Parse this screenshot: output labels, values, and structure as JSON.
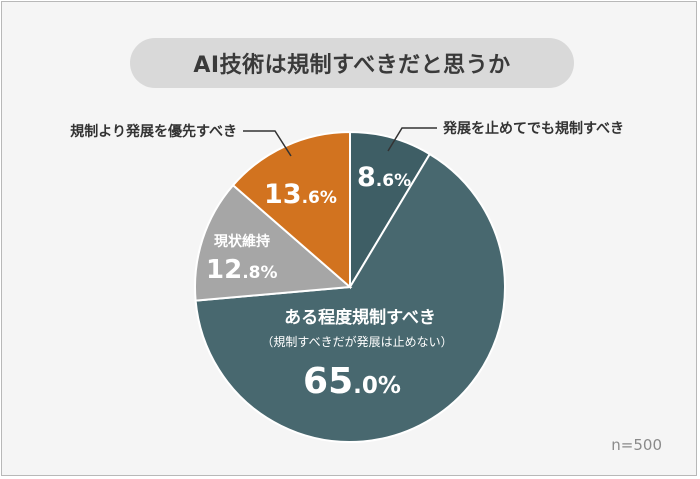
{
  "chart_data": {
    "type": "pie",
    "title": "AI技術は規制すべきだと思うか",
    "categories": [
      "発展を止めてでも規制すべき",
      "ある程度規制すべき",
      "現状維持",
      "規制より発展を優先すべき"
    ],
    "values": [
      8.6,
      65.0,
      12.8,
      13.6
    ],
    "value_labels": [
      {
        "int": "8",
        "dec": ".6%"
      },
      {
        "int": "65",
        "dec": ".0%"
      },
      {
        "int": "12",
        "dec": ".8%"
      },
      {
        "int": "13",
        "dec": ".6%"
      }
    ],
    "sublabels": [
      "",
      "（規制すべきだが発展は止めない）",
      "",
      ""
    ],
    "colors": [
      "#3e5e65",
      "#48686f",
      "#a6a6a6",
      "#d2731f"
    ],
    "start_angle": "top",
    "direction": "clockwise",
    "slice_border_color": "#ffffff",
    "sample_note": "n=500"
  }
}
